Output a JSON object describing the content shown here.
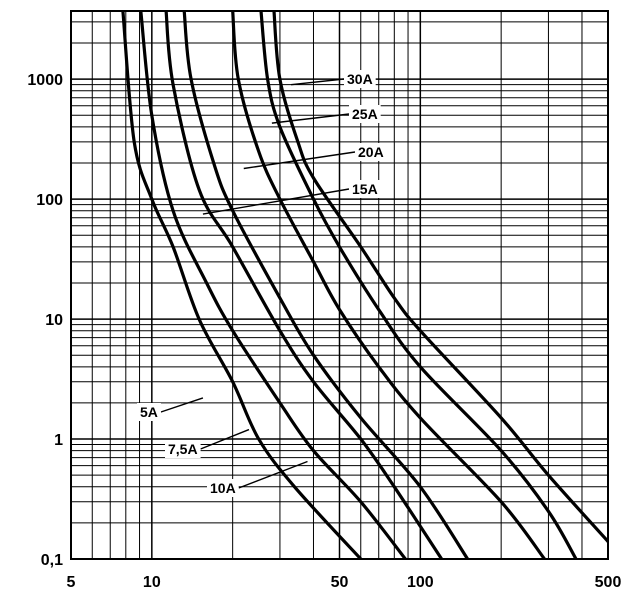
{
  "chart_data": {
    "type": "line",
    "title": "",
    "xlabel": "",
    "ylabel": "",
    "x_scale": "log",
    "y_scale": "log",
    "xlim": [
      5,
      500
    ],
    "ylim": [
      0.1,
      3700
    ],
    "grid": true,
    "x_ticks": [
      {
        "value": 5,
        "label": "5"
      },
      {
        "value": 10,
        "label": "10"
      },
      {
        "value": 50,
        "label": "50"
      },
      {
        "value": 100,
        "label": "100"
      },
      {
        "value": 500,
        "label": "500"
      }
    ],
    "y_ticks": [
      {
        "value": 0.1,
        "label": "0,1"
      },
      {
        "value": 1,
        "label": "1"
      },
      {
        "value": 10,
        "label": "10"
      },
      {
        "value": 100,
        "label": "100"
      },
      {
        "value": 1000,
        "label": "1000"
      }
    ],
    "series": [
      {
        "name": "5A",
        "points": [
          [
            7.8,
            3700
          ],
          [
            8.6,
            300
          ],
          [
            10,
            100
          ],
          [
            12,
            40
          ],
          [
            15,
            10
          ],
          [
            20,
            3
          ],
          [
            25,
            1
          ],
          [
            34,
            0.4
          ],
          [
            60,
            0.1
          ]
        ]
      },
      {
        "name": "7,5A",
        "points": [
          [
            9.1,
            3700
          ],
          [
            10,
            500
          ],
          [
            12,
            80
          ],
          [
            16,
            20
          ],
          [
            20,
            8
          ],
          [
            30,
            2
          ],
          [
            40,
            0.8
          ],
          [
            60,
            0.3
          ],
          [
            88,
            0.1
          ]
        ]
      },
      {
        "name": "10A",
        "points": [
          [
            11.3,
            3700
          ],
          [
            12,
            900
          ],
          [
            15,
            120
          ],
          [
            20,
            40
          ],
          [
            30,
            8
          ],
          [
            40,
            3
          ],
          [
            60,
            1
          ],
          [
            80,
            0.4
          ],
          [
            120,
            0.1
          ]
        ]
      },
      {
        "name": "15A",
        "points": [
          [
            13.2,
            3700
          ],
          [
            14,
            1000
          ],
          [
            17,
            200
          ],
          [
            20,
            80
          ],
          [
            30,
            15
          ],
          [
            40,
            5
          ],
          [
            60,
            1.5
          ],
          [
            100,
            0.4
          ],
          [
            150,
            0.1
          ]
        ]
      },
      {
        "name": "20A",
        "points": [
          [
            20,
            3700
          ],
          [
            21,
            1000
          ],
          [
            25,
            250
          ],
          [
            30,
            100
          ],
          [
            40,
            30
          ],
          [
            50,
            12
          ],
          [
            70,
            4
          ],
          [
            100,
            1.5
          ],
          [
            200,
            0.3
          ],
          [
            290,
            0.1
          ]
        ]
      },
      {
        "name": "25A",
        "points": [
          [
            25.5,
            3700
          ],
          [
            27,
            1000
          ],
          [
            30,
            400
          ],
          [
            40,
            100
          ],
          [
            50,
            40
          ],
          [
            70,
            12
          ],
          [
            100,
            4
          ],
          [
            200,
            0.8
          ],
          [
            300,
            0.25
          ],
          [
            380,
            0.1
          ]
        ]
      },
      {
        "name": "30A",
        "points": [
          [
            28.5,
            3700
          ],
          [
            30,
            1000
          ],
          [
            35,
            300
          ],
          [
            40,
            150
          ],
          [
            60,
            40
          ],
          [
            80,
            15
          ],
          [
            100,
            8
          ],
          [
            200,
            1.5
          ],
          [
            300,
            0.5
          ],
          [
            500,
            0.14
          ]
        ]
      }
    ],
    "annotations": [
      {
        "text": "30A",
        "series": "30A",
        "anchor": [
          33,
          900
        ]
      },
      {
        "text": "25A",
        "series": "25A",
        "anchor": [
          28,
          430
        ]
      },
      {
        "text": "20A",
        "series": "20A",
        "anchor": [
          22,
          180
        ]
      },
      {
        "text": "15A",
        "series": "15A",
        "anchor": [
          15.5,
          75
        ]
      },
      {
        "text": "5A",
        "series": "5A",
        "anchor": [
          15.5,
          2.2
        ]
      },
      {
        "text": "7,5A",
        "series": "7,5A",
        "anchor": [
          23,
          1.2
        ]
      },
      {
        "text": "10A",
        "series": "10A",
        "anchor": [
          38,
          0.65
        ]
      }
    ]
  }
}
